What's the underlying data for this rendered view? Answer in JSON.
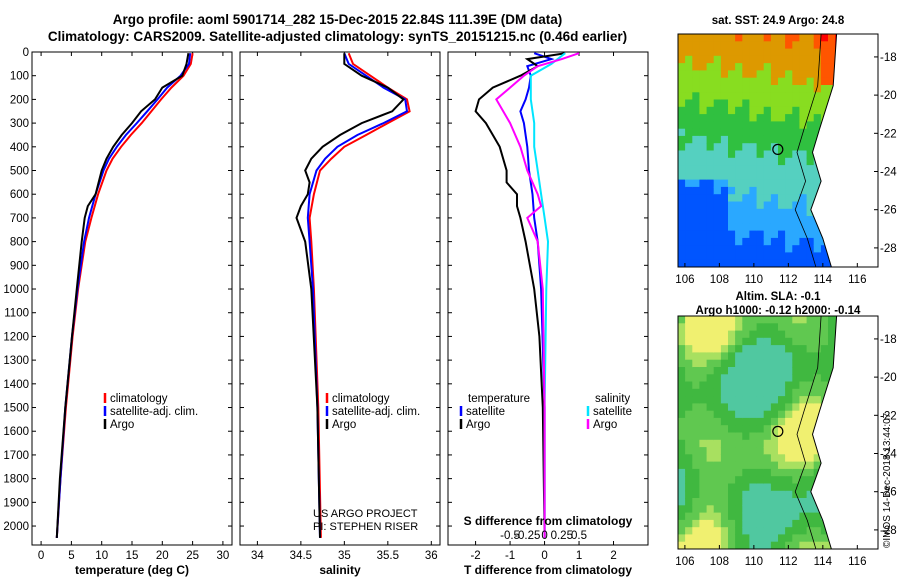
{
  "header": {
    "title_line1": "Argo profile: aoml 5901714_282 15-Dec-2015 22.84S 111.39E (DM data)",
    "title_line2": "Climatology: CARS2009. Satellite-adjusted climatology: synTS_20151215.nc (0.46d earlier)"
  },
  "colors": {
    "climatology": "#ff0000",
    "satellite": "#0000ff",
    "argo": "#000000",
    "sal_satellite": "#00e5ff",
    "sal_argo": "#ff00ff"
  },
  "chart_data": [
    {
      "type": "line",
      "panel": "temperature",
      "xlabel": "temperature (deg C)",
      "ylabel": "",
      "xlim": [
        -1.5,
        31.5
      ],
      "ylim": [
        2080,
        0
      ],
      "xticks": [
        0,
        5,
        10,
        15,
        20,
        25,
        30
      ],
      "yticks": [
        0,
        100,
        200,
        300,
        400,
        500,
        600,
        700,
        800,
        900,
        1000,
        1100,
        1200,
        1300,
        1400,
        1500,
        1600,
        1700,
        1800,
        1900,
        2000
      ],
      "legend": [
        "climatology",
        "satellite-adj. clim.",
        "Argo"
      ],
      "series": [
        {
          "name": "climatology",
          "color": "#ff0000",
          "depth": [
            5,
            50,
            100,
            150,
            200,
            250,
            300,
            350,
            400,
            450,
            500,
            600,
            700,
            800,
            1000,
            1200,
            1500,
            1800,
            2050
          ],
          "values": [
            25,
            24.7,
            23.5,
            21.5,
            19.8,
            18.2,
            16.6,
            14.8,
            13.2,
            11.8,
            10.8,
            9.4,
            8.3,
            7.3,
            6.1,
            5.2,
            4.1,
            3.2,
            2.6
          ]
        },
        {
          "name": "satellite-adj. clim.",
          "color": "#0000ff",
          "depth": [
            5,
            50,
            100,
            150,
            200,
            250,
            300,
            350,
            400,
            450,
            500,
            600,
            700,
            800,
            1000,
            1200,
            1500,
            1800,
            2050
          ],
          "values": [
            24.6,
            24.4,
            23.0,
            20.8,
            19.2,
            17.5,
            15.8,
            14.0,
            12.5,
            11.2,
            10.3,
            9.0,
            7.9,
            7.1,
            6.0,
            5.1,
            4.0,
            3.2,
            2.6
          ]
        },
        {
          "name": "Argo",
          "color": "#000000",
          "depth": [
            5,
            50,
            100,
            150,
            200,
            250,
            300,
            350,
            400,
            450,
            500,
            600,
            650,
            700,
            800,
            1000,
            1200,
            1500,
            1800,
            2050
          ],
          "values": [
            24.3,
            24.0,
            23.3,
            20.0,
            18.8,
            16.5,
            15.0,
            13.3,
            11.9,
            10.8,
            10.0,
            9.0,
            7.7,
            7.2,
            6.7,
            5.9,
            5.1,
            4.0,
            3.1,
            2.6
          ]
        }
      ]
    },
    {
      "type": "line",
      "panel": "salinity",
      "xlabel": "salinity",
      "ylabel": "",
      "xlim": [
        33.8,
        36.1
      ],
      "ylim": [
        2080,
        0
      ],
      "xticks": [
        34,
        34.5,
        35,
        35.5,
        36
      ],
      "legend": [
        "climatology",
        "satellite-adj. clim.",
        "Argo"
      ],
      "credit": [
        "US ARGO PROJECT",
        "PI: STEPHEN RISER"
      ],
      "series": [
        {
          "name": "climatology",
          "color": "#ff0000",
          "depth": [
            5,
            50,
            100,
            150,
            200,
            250,
            300,
            350,
            400,
            450,
            500,
            600,
            700,
            800,
            1000,
            1500,
            2050
          ],
          "values": [
            35.05,
            35.1,
            35.3,
            35.5,
            35.72,
            35.75,
            35.5,
            35.25,
            35.0,
            34.85,
            34.72,
            34.65,
            34.6,
            34.62,
            34.65,
            34.7,
            34.73
          ]
        },
        {
          "name": "satellite-adj. clim.",
          "color": "#0000ff",
          "depth": [
            5,
            50,
            100,
            150,
            200,
            250,
            300,
            350,
            400,
            450,
            500,
            600,
            700,
            800,
            1000,
            1500,
            2050
          ],
          "values": [
            35.0,
            35.05,
            35.25,
            35.45,
            35.7,
            35.72,
            35.45,
            35.15,
            34.92,
            34.78,
            34.68,
            34.6,
            34.58,
            34.6,
            34.64,
            34.69,
            34.72
          ]
        },
        {
          "name": "Argo",
          "color": "#000000",
          "depth": [
            5,
            50,
            100,
            150,
            200,
            250,
            300,
            350,
            400,
            450,
            500,
            550,
            600,
            650,
            700,
            800,
            1000,
            1500,
            2050
          ],
          "values": [
            35.0,
            35.0,
            35.2,
            35.5,
            35.68,
            35.55,
            35.2,
            34.95,
            34.75,
            34.62,
            34.55,
            34.6,
            34.58,
            34.5,
            34.45,
            34.55,
            34.62,
            34.69,
            34.72
          ]
        }
      ]
    },
    {
      "type": "line",
      "panel": "difference",
      "xlabel": "T difference from climatology",
      "xlabel_top": "S difference from climatology",
      "xlim": [
        -2.8,
        3.0
      ],
      "ylim": [
        2080,
        0
      ],
      "xticks": [
        -2,
        -1,
        0,
        1,
        2
      ],
      "xticklabels_top": [
        "-0.5",
        "-0.25",
        "0",
        "0.25",
        "0.5"
      ],
      "legend": {
        "temperature": [
          "satellite",
          "Argo"
        ],
        "salinity": [
          "satellite",
          "Argo"
        ],
        "temperature_label": "temperature",
        "salinity_label": "salinity"
      },
      "series": [
        {
          "name": "temperature satellite",
          "color": "#0000ff",
          "depth": [
            5,
            30,
            60,
            100,
            150,
            200,
            250,
            300,
            400,
            500,
            600,
            700,
            800,
            1000,
            1500,
            2050
          ],
          "values": [
            -0.3,
            0.2,
            -0.5,
            -0.4,
            -0.45,
            -0.55,
            -0.7,
            -0.6,
            -0.5,
            -0.45,
            -0.35,
            -0.3,
            -0.2,
            -0.1,
            0,
            0
          ]
        },
        {
          "name": "temperature Argo",
          "color": "#000000",
          "depth": [
            5,
            30,
            60,
            100,
            150,
            200,
            250,
            300,
            400,
            500,
            550,
            600,
            650,
            700,
            800,
            1000,
            1200,
            1500,
            2050
          ],
          "values": [
            0.6,
            -0.5,
            -0.2,
            -0.7,
            -1.5,
            -1.9,
            -2.0,
            -1.7,
            -1.3,
            -1.1,
            -1.1,
            -0.8,
            -0.8,
            -0.7,
            -0.55,
            -0.3,
            -0.15,
            -0.05,
            0
          ]
        },
        {
          "name": "salinity satellite",
          "color": "#00e5ff",
          "depth": [
            5,
            50,
            100,
            200,
            300,
            400,
            500,
            600,
            700,
            800,
            1000,
            1500,
            2050
          ],
          "values": [
            0.6,
            0.2,
            -0.4,
            -0.4,
            -0.3,
            -0.3,
            -0.2,
            -0.1,
            0,
            0.1,
            0.05,
            0,
            0
          ]
        },
        {
          "name": "salinity Argo",
          "color": "#ff00ff",
          "depth": [
            5,
            30,
            60,
            100,
            150,
            200,
            250,
            300,
            400,
            500,
            600,
            650,
            700,
            800,
            1000,
            1500,
            2050
          ],
          "values": [
            1.0,
            0.5,
            -0.2,
            -0.6,
            -1.0,
            -1.4,
            -1.2,
            -1.0,
            -0.7,
            -0.5,
            -0.2,
            -0.1,
            -0.5,
            -0.2,
            -0.05,
            0,
            0
          ]
        }
      ]
    },
    {
      "type": "heatmap",
      "panel": "sst_map",
      "title": "sat. SST: 24.9 Argo: 24.8",
      "xticks": [
        106,
        108,
        110,
        112,
        114,
        116
      ],
      "yticks": [
        -18,
        -20,
        -22,
        -24,
        -26,
        -28
      ],
      "xlim": [
        105.6,
        117.2
      ],
      "ylim": [
        -29,
        -16.8
      ],
      "argo_position": [
        111.39,
        -22.84
      ]
    },
    {
      "type": "heatmap",
      "panel": "sla_map",
      "title": "Altim. SLA: -0.1",
      "subtitle": "Argo h1000: -0.12 h2000: -0.14",
      "xticks": [
        106,
        108,
        110,
        112,
        114,
        116
      ],
      "yticks": [
        -18,
        -20,
        -22,
        -24,
        -26,
        -28
      ],
      "xlim": [
        105.6,
        117.2
      ],
      "ylim": [
        -29,
        -16.8
      ],
      "argo_position": [
        111.39,
        -22.84
      ]
    }
  ],
  "footer": {
    "stamp": "©IMOS 14-Dec-2018 13:44:07"
  }
}
